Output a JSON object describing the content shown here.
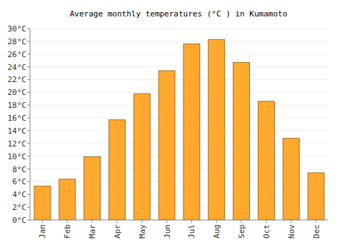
{
  "chart_data": {
    "type": "bar",
    "title": "Average monthly temperatures (°C ) in Kumamoto",
    "categories": [
      "Jan",
      "Feb",
      "Mar",
      "Apr",
      "May",
      "Jun",
      "Jul",
      "Aug",
      "Sep",
      "Oct",
      "Nov",
      "Dec"
    ],
    "values": [
      5.3,
      6.4,
      9.9,
      15.7,
      19.8,
      23.4,
      27.6,
      28.3,
      24.7,
      18.6,
      12.8,
      7.4
    ],
    "color": "#ffa92e",
    "ylim": [
      0,
      30
    ],
    "yticks": [
      {
        "value": 0,
        "label": "0°C"
      },
      {
        "value": 2,
        "label": "2°C"
      },
      {
        "value": 4,
        "label": "4°C"
      },
      {
        "value": 6,
        "label": "6°C"
      },
      {
        "value": 8,
        "label": "8°C"
      },
      {
        "value": 10,
        "label": "10°C"
      },
      {
        "value": 12,
        "label": "12°C"
      },
      {
        "value": 14,
        "label": "14°C"
      },
      {
        "value": 16,
        "label": "16°C"
      },
      {
        "value": 18,
        "label": "18°C"
      },
      {
        "value": 20,
        "label": "20°C"
      },
      {
        "value": 22,
        "label": "22°C"
      },
      {
        "value": 24,
        "label": "24°C"
      },
      {
        "value": 26,
        "label": "26°C"
      },
      {
        "value": 28,
        "label": "28°C"
      },
      {
        "value": 30,
        "label": "30°C"
      }
    ],
    "grid": true
  }
}
